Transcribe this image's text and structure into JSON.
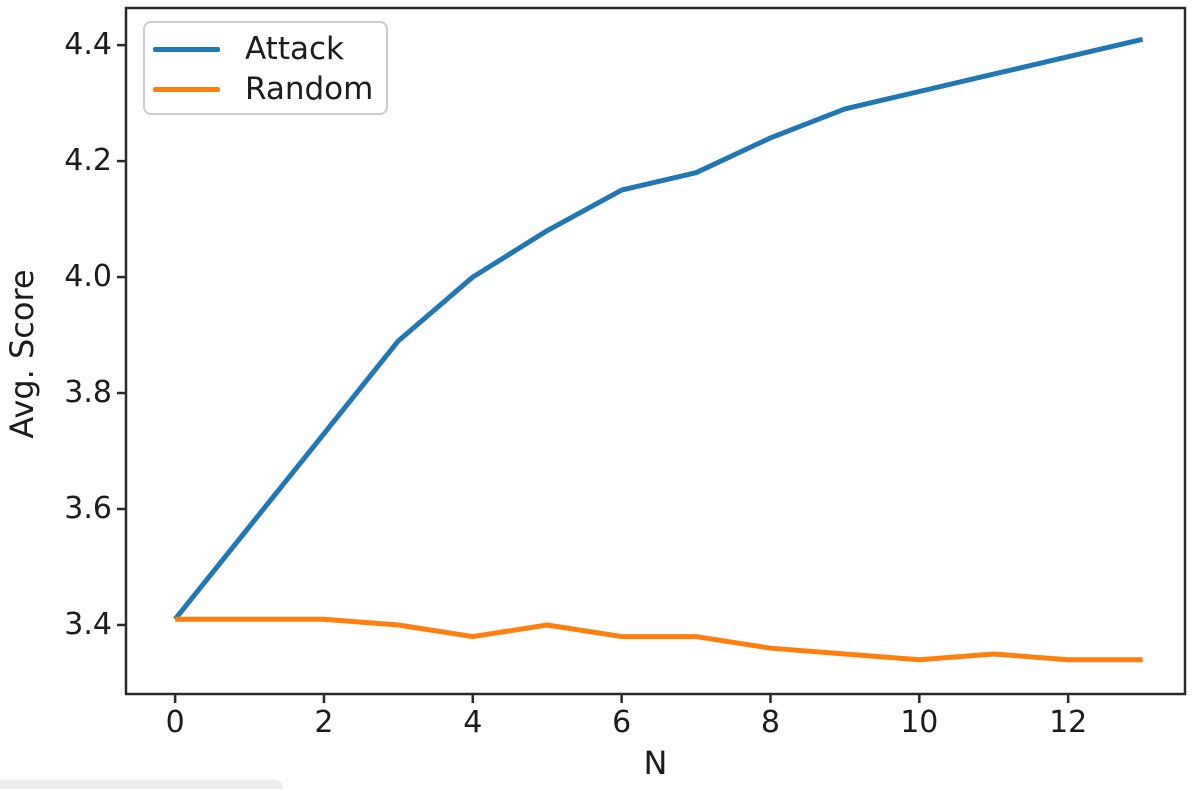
{
  "figure": {
    "xlabel": "N",
    "ylabel": "Avg. Score",
    "background_color": "#ffffff",
    "spine_color": "#2a2a2a",
    "text_color": "#1c1c1c",
    "legend": [
      {
        "label": "Attack",
        "color": "#1f77b4"
      },
      {
        "label": "Random",
        "color": "#ff7f0e"
      }
    ]
  },
  "chart_data": {
    "type": "line",
    "title": "",
    "xlabel": "N",
    "ylabel": "Avg. Score",
    "x": [
      0,
      1,
      2,
      3,
      4,
      5,
      6,
      7,
      8,
      9,
      10,
      11,
      12,
      13
    ],
    "series": [
      {
        "name": "Attack",
        "color": "#1f77b4",
        "values": [
          3.41,
          3.57,
          3.73,
          3.89,
          4.0,
          4.08,
          4.15,
          4.18,
          4.24,
          4.29,
          4.32,
          4.35,
          4.38,
          4.41
        ]
      },
      {
        "name": "Random",
        "color": "#ff7f0e",
        "values": [
          3.41,
          3.41,
          3.41,
          3.4,
          3.38,
          3.4,
          3.38,
          3.38,
          3.36,
          3.35,
          3.34,
          3.35,
          3.34,
          3.34
        ]
      }
    ],
    "xticks": [
      0,
      2,
      4,
      6,
      8,
      10,
      12
    ],
    "yticks": [
      3.4,
      3.6,
      3.8,
      4.0,
      4.2,
      4.4
    ],
    "xlim": [
      -0.66,
      13.57
    ],
    "ylim": [
      3.281,
      4.464
    ],
    "grid": false,
    "legend_position": "upper left",
    "line_width": 5
  }
}
